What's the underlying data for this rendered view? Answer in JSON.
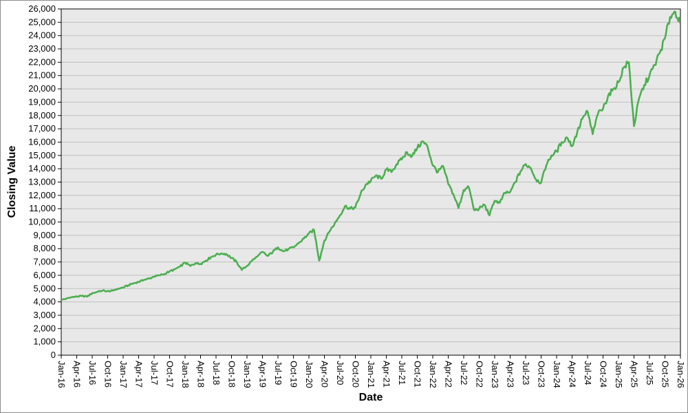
{
  "chart_data": {
    "type": "line",
    "title": "",
    "xlabel": "Date",
    "ylabel": "Closing Value",
    "ylim": [
      0,
      26000
    ],
    "y_tick_step": 1000,
    "grid": "horizontal",
    "legend": "none",
    "colors": {
      "line": "#4caf50",
      "plot_bg": "#e8e8e8",
      "grid": "#bfbfbf",
      "axis": "#000000",
      "page_bg": "#ffffff"
    },
    "y_tick_labels": [
      "0",
      "1,000",
      "2,000",
      "3,000",
      "4,000",
      "5,000",
      "6,000",
      "7,000",
      "8,000",
      "9,000",
      "10,000",
      "11,000",
      "12,000",
      "13,000",
      "14,000",
      "15,000",
      "16,000",
      "17,000",
      "18,000",
      "19,000",
      "20,000",
      "21,000",
      "22,000",
      "23,000",
      "24,000",
      "25,000",
      "26,000"
    ],
    "x_tick_labels": [
      "Jan-16",
      "Apr-16",
      "Jul-16",
      "Oct-16",
      "Jan-17",
      "Apr-17",
      "Jul-17",
      "Oct-17",
      "Jan-18",
      "Apr-18",
      "Jul-18",
      "Oct-18",
      "Jan-19",
      "Apr-19",
      "Jul-19",
      "Oct-19",
      "Jan-20",
      "Apr-20",
      "Jul-20",
      "Oct-20",
      "Jan-21",
      "Apr-21",
      "Jul-21",
      "Oct-21",
      "Jan-22",
      "Apr-22",
      "Jul-22",
      "Oct-22",
      "Jan-23",
      "Apr-23",
      "Jul-23",
      "Oct-23",
      "Jan-24",
      "Apr-24",
      "Jul-24",
      "Oct-24",
      "Jan-25",
      "Apr-25",
      "Jul-25",
      "Oct-25",
      "Jan-26"
    ],
    "series": [
      {
        "name": "Closing Value",
        "months": [
          "Jan-16",
          "Feb-16",
          "Mar-16",
          "Apr-16",
          "May-16",
          "Jun-16",
          "Jul-16",
          "Aug-16",
          "Sep-16",
          "Oct-16",
          "Nov-16",
          "Dec-16",
          "Jan-17",
          "Feb-17",
          "Mar-17",
          "Apr-17",
          "May-17",
          "Jun-17",
          "Jul-17",
          "Aug-17",
          "Sep-17",
          "Oct-17",
          "Nov-17",
          "Dec-17",
          "Jan-18",
          "Feb-18",
          "Mar-18",
          "Apr-18",
          "May-18",
          "Jun-18",
          "Jul-18",
          "Aug-18",
          "Sep-18",
          "Oct-18",
          "Nov-18",
          "Dec-18",
          "Jan-19",
          "Feb-19",
          "Mar-19",
          "Apr-19",
          "May-19",
          "Jun-19",
          "Jul-19",
          "Aug-19",
          "Sep-19",
          "Oct-19",
          "Nov-19",
          "Dec-19",
          "Jan-20",
          "Feb-20",
          "Mar-20",
          "Apr-20",
          "May-20",
          "Jun-20",
          "Jul-20",
          "Aug-20",
          "Sep-20",
          "Oct-20",
          "Nov-20",
          "Dec-20",
          "Jan-21",
          "Feb-21",
          "Mar-21",
          "Apr-21",
          "May-21",
          "Jun-21",
          "Jul-21",
          "Aug-21",
          "Sep-21",
          "Oct-21",
          "Nov-21",
          "Dec-21",
          "Jan-22",
          "Feb-22",
          "Mar-22",
          "Apr-22",
          "May-22",
          "Jun-22",
          "Jul-22",
          "Aug-22",
          "Sep-22",
          "Oct-22",
          "Nov-22",
          "Dec-22",
          "Jan-23",
          "Feb-23",
          "Mar-23",
          "Apr-23",
          "May-23",
          "Jun-23",
          "Jul-23",
          "Aug-23",
          "Sep-23",
          "Oct-23",
          "Nov-23",
          "Dec-23",
          "Jan-24",
          "Feb-24",
          "Mar-24",
          "Apr-24",
          "May-24",
          "Jun-24",
          "Jul-24",
          "Aug-24",
          "Sep-24",
          "Oct-24",
          "Nov-24",
          "Dec-24",
          "Jan-25",
          "Feb-25",
          "Mar-25",
          "Apr-25",
          "May-25",
          "Jun-25",
          "Jul-25",
          "Aug-25",
          "Sep-25",
          "Oct-25",
          "Nov-25",
          "Dec-25",
          "Jan-26"
        ],
        "values": [
          4150,
          4250,
          4350,
          4400,
          4450,
          4400,
          4650,
          4750,
          4850,
          4800,
          4850,
          5000,
          5080,
          5250,
          5400,
          5500,
          5650,
          5750,
          5900,
          6000,
          6100,
          6300,
          6450,
          6650,
          6950,
          6700,
          6900,
          6850,
          7100,
          7350,
          7550,
          7650,
          7600,
          7300,
          7000,
          6400,
          6700,
          7100,
          7400,
          7750,
          7450,
          7750,
          8100,
          7800,
          7950,
          8100,
          8400,
          8750,
          9150,
          9400,
          7100,
          8600,
          9300,
          9900,
          10500,
          11200,
          11000,
          11100,
          12100,
          12800,
          13100,
          13500,
          13250,
          13950,
          13750,
          14350,
          14700,
          15250,
          14950,
          15550,
          16050,
          15650,
          14250,
          13750,
          14200,
          12850,
          12100,
          11050,
          12400,
          12600,
          10900,
          11000,
          11300,
          10500,
          11600,
          11450,
          12200,
          12250,
          13000,
          13800,
          14350,
          14050,
          13200,
          12950,
          14250,
          15000,
          15300,
          16000,
          16350,
          15700,
          16750,
          17750,
          18300,
          16600,
          18100,
          18500,
          19500,
          20000,
          20500,
          21600,
          22000,
          17200,
          19300,
          20300,
          21000,
          21800,
          22700,
          23800,
          25400,
          25800,
          24900
        ]
      }
    ]
  }
}
